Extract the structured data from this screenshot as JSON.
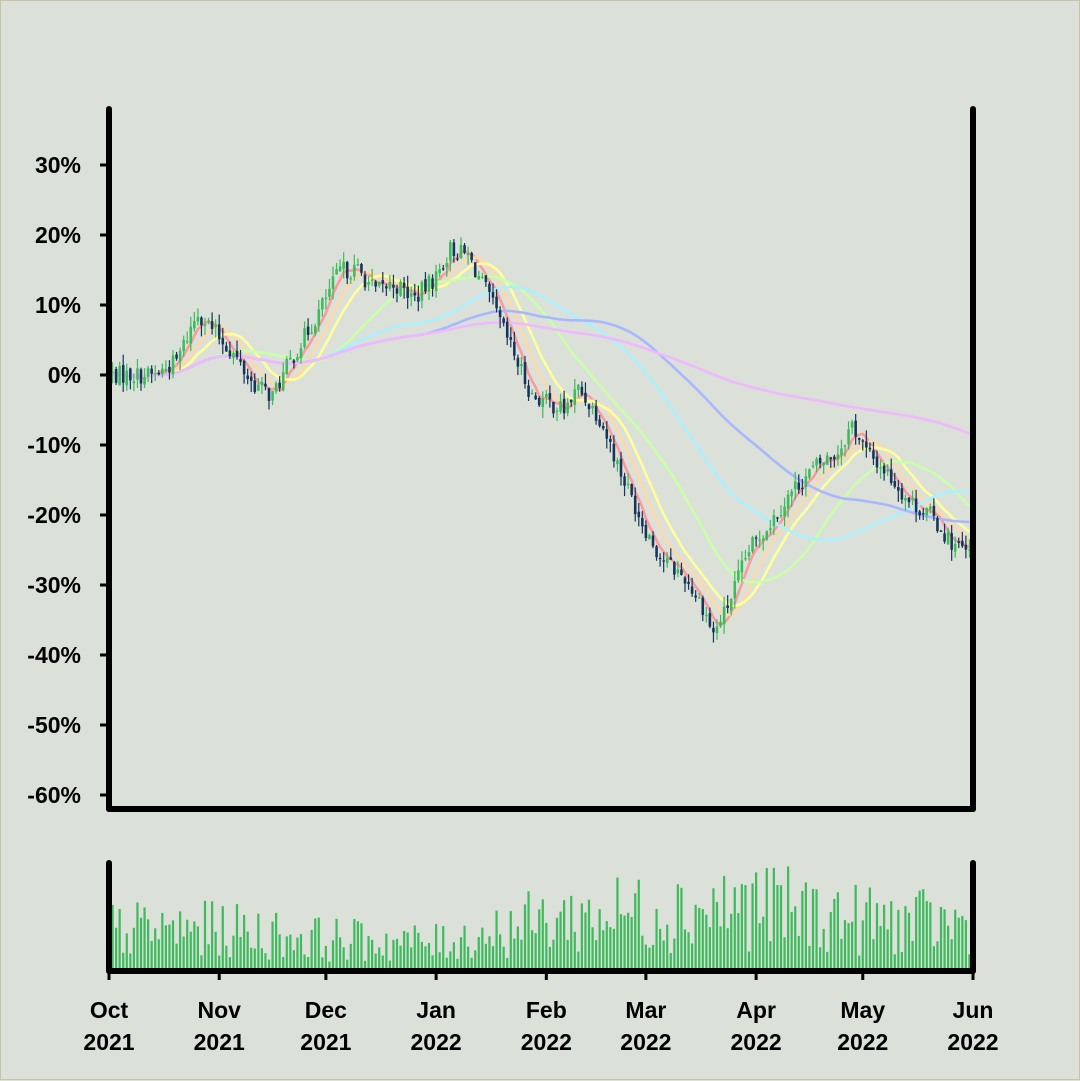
{
  "chart_data": {
    "type": "candlestick",
    "title": "",
    "xlabel": "",
    "ylabel": "",
    "y_unit": "percent",
    "ylim": [
      -62,
      38
    ],
    "y_ticks": [
      "30%",
      "20%",
      "10%",
      "0%",
      "-10%",
      "-20%",
      "-30%",
      "-40%",
      "-50%",
      "-60%"
    ],
    "y_tick_values": [
      30,
      20,
      10,
      0,
      -10,
      -20,
      -30,
      -40,
      -50,
      -60
    ],
    "x_range": [
      "2021-10-01",
      "2022-06-01"
    ],
    "x_ticks": [
      {
        "month": "Oct",
        "year": "2021",
        "date": "2021-10-01"
      },
      {
        "month": "Nov",
        "year": "2021",
        "date": "2021-11-01"
      },
      {
        "month": "Dec",
        "year": "2021",
        "date": "2021-12-01"
      },
      {
        "month": "Jan",
        "year": "2022",
        "date": "2022-01-01"
      },
      {
        "month": "Feb",
        "year": "2022",
        "date": "2022-02-01"
      },
      {
        "month": "Mar",
        "year": "2022",
        "date": "2022-03-01"
      },
      {
        "month": "Apr",
        "year": "2022",
        "date": "2022-04-01"
      },
      {
        "month": "May",
        "year": "2022",
        "date": "2022-05-01"
      },
      {
        "month": "Jun",
        "year": "2022",
        "date": "2022-06-01"
      }
    ],
    "price_path": [
      [
        "2021-10-01",
        0
      ],
      [
        "2021-10-08",
        0
      ],
      [
        "2021-10-14",
        0
      ],
      [
        "2021-10-20",
        2
      ],
      [
        "2021-10-26",
        9
      ],
      [
        "2021-10-31",
        6
      ],
      [
        "2021-11-05",
        3
      ],
      [
        "2021-11-10",
        -1
      ],
      [
        "2021-11-16",
        -3
      ],
      [
        "2021-11-21",
        2
      ],
      [
        "2021-11-28",
        8
      ],
      [
        "2021-12-05",
        15
      ],
      [
        "2021-12-10",
        15
      ],
      [
        "2021-12-15",
        12
      ],
      [
        "2021-12-20",
        13
      ],
      [
        "2021-12-26",
        11
      ],
      [
        "2022-01-01",
        14
      ],
      [
        "2022-01-05",
        18
      ],
      [
        "2022-01-10",
        17
      ],
      [
        "2022-01-16",
        11
      ],
      [
        "2022-01-22",
        4
      ],
      [
        "2022-01-28",
        -3
      ],
      [
        "2022-02-02",
        -4
      ],
      [
        "2022-02-06",
        -5
      ],
      [
        "2022-02-10",
        -2
      ],
      [
        "2022-02-16",
        -6
      ],
      [
        "2022-02-22",
        -14
      ],
      [
        "2022-02-28",
        -21
      ],
      [
        "2022-03-05",
        -26
      ],
      [
        "2022-03-12",
        -29
      ],
      [
        "2022-03-17",
        -33
      ],
      [
        "2022-03-20",
        -37
      ],
      [
        "2022-03-24",
        -33
      ],
      [
        "2022-03-30",
        -25
      ],
      [
        "2022-04-05",
        -21
      ],
      [
        "2022-04-12",
        -16
      ],
      [
        "2022-04-18",
        -13
      ],
      [
        "2022-04-24",
        -11
      ],
      [
        "2022-04-28",
        -7
      ],
      [
        "2022-05-02",
        -11
      ],
      [
        "2022-05-08",
        -14
      ],
      [
        "2022-05-14",
        -18
      ],
      [
        "2022-05-20",
        -20
      ],
      [
        "2022-05-26",
        -24
      ],
      [
        "2022-06-01",
        -26
      ]
    ],
    "volume_level": [
      [
        "2021-10-01",
        0.45
      ],
      [
        "2021-11-01",
        0.45
      ],
      [
        "2021-12-01",
        0.35
      ],
      [
        "2022-01-01",
        0.3
      ],
      [
        "2022-02-01",
        0.55
      ],
      [
        "2022-03-01",
        0.65
      ],
      [
        "2022-04-01",
        0.72
      ],
      [
        "2022-05-01",
        0.55
      ],
      [
        "2022-06-01",
        0.5
      ]
    ],
    "colors": {
      "up": "#3dbb5c",
      "down": "#16355a",
      "volume": "#3dbb5c",
      "moving_averages": [
        "#ff9a9a",
        "#ffd8a8",
        "#ffff99",
        "#c8ffa8",
        "#aaf0ff",
        "#a8b8ff",
        "#f0b8ff"
      ]
    },
    "moving_average_windows_days": [
      5,
      10,
      15,
      30,
      60,
      90,
      180
    ],
    "grid": false,
    "legend": "none"
  }
}
